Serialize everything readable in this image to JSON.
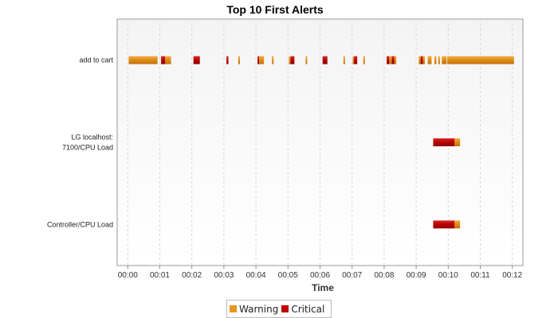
{
  "chart_data": {
    "type": "gantt",
    "title": "Top 10 First Alerts",
    "xlabel": "Time",
    "xlim": [
      -0.33,
      12.33
    ],
    "x_ticks": [
      "00:00",
      "00:01",
      "00:02",
      "00:03",
      "00:04",
      "00:05",
      "00:06",
      "00:07",
      "00:08",
      "00:09",
      "00:10",
      "00:11",
      "00:12"
    ],
    "x_tick_values": [
      0,
      1,
      2,
      3,
      4,
      5,
      6,
      7,
      8,
      9,
      10,
      11,
      12
    ],
    "grid": true,
    "legend_position": "bottom",
    "colors": {
      "Warning": "#e8961e",
      "Critical": "#c00000"
    },
    "series": [
      {
        "name": "Warning",
        "color": "#e8961e"
      },
      {
        "name": "Critical",
        "color": "#c00000"
      }
    ],
    "categories": [
      {
        "label_lines": [
          "add to cart"
        ],
        "label": "add to cart"
      },
      {
        "label_lines": [
          "LG localhost:",
          "7100/CPU Load"
        ],
        "label": "LG localhost: 7100/CPU Load"
      },
      {
        "label_lines": [
          "Controller/CPU Load"
        ],
        "label": "Controller/CPU Load"
      }
    ],
    "segments": [
      {
        "category": 0,
        "type": "Warning",
        "start": 0.03,
        "end": 0.93
      },
      {
        "category": 0,
        "type": "Critical",
        "start": 1.04,
        "end": 1.17
      },
      {
        "category": 0,
        "type": "Warning",
        "start": 1.17,
        "end": 1.35
      },
      {
        "category": 0,
        "type": "Critical",
        "start": 2.05,
        "end": 2.25
      },
      {
        "category": 0,
        "type": "Critical",
        "start": 3.08,
        "end": 3.14
      },
      {
        "category": 0,
        "type": "Warning",
        "start": 3.45,
        "end": 3.5
      },
      {
        "category": 0,
        "type": "Critical",
        "start": 4.05,
        "end": 4.1
      },
      {
        "category": 0,
        "type": "Warning",
        "start": 4.1,
        "end": 4.25
      },
      {
        "category": 0,
        "type": "Warning",
        "start": 4.5,
        "end": 4.55
      },
      {
        "category": 0,
        "type": "Warning",
        "start": 5.03,
        "end": 5.08
      },
      {
        "category": 0,
        "type": "Critical",
        "start": 5.08,
        "end": 5.2
      },
      {
        "category": 0,
        "type": "Warning",
        "start": 5.55,
        "end": 5.6
      },
      {
        "category": 0,
        "type": "Critical",
        "start": 6.08,
        "end": 6.23
      },
      {
        "category": 0,
        "type": "Warning",
        "start": 6.73,
        "end": 6.78
      },
      {
        "category": 0,
        "type": "Warning",
        "start": 7.02,
        "end": 7.06
      },
      {
        "category": 0,
        "type": "Critical",
        "start": 7.06,
        "end": 7.16
      },
      {
        "category": 0,
        "type": "Warning",
        "start": 7.35,
        "end": 7.4
      },
      {
        "category": 0,
        "type": "Critical",
        "start": 8.08,
        "end": 8.16
      },
      {
        "category": 0,
        "type": "Warning",
        "start": 8.16,
        "end": 8.24
      },
      {
        "category": 0,
        "type": "Critical",
        "start": 8.24,
        "end": 8.32
      },
      {
        "category": 0,
        "type": "Warning",
        "start": 8.32,
        "end": 8.38
      },
      {
        "category": 0,
        "type": "Warning",
        "start": 9.08,
        "end": 9.14
      },
      {
        "category": 0,
        "type": "Critical",
        "start": 9.14,
        "end": 9.21
      },
      {
        "category": 0,
        "type": "Warning",
        "start": 9.21,
        "end": 9.27
      },
      {
        "category": 0,
        "type": "Warning",
        "start": 9.36,
        "end": 9.48
      },
      {
        "category": 0,
        "type": "Warning",
        "start": 9.57,
        "end": 9.63
      },
      {
        "category": 0,
        "type": "Warning",
        "start": 9.69,
        "end": 9.74
      },
      {
        "category": 0,
        "type": "Warning",
        "start": 9.8,
        "end": 9.95
      },
      {
        "category": 0,
        "type": "Warning",
        "start": 9.97,
        "end": 12.05
      },
      {
        "category": 1,
        "type": "Critical",
        "start": 9.53,
        "end": 10.2
      },
      {
        "category": 1,
        "type": "Warning",
        "start": 10.2,
        "end": 10.37
      },
      {
        "category": 2,
        "type": "Critical",
        "start": 9.53,
        "end": 10.2
      },
      {
        "category": 2,
        "type": "Warning",
        "start": 10.2,
        "end": 10.37
      }
    ]
  }
}
